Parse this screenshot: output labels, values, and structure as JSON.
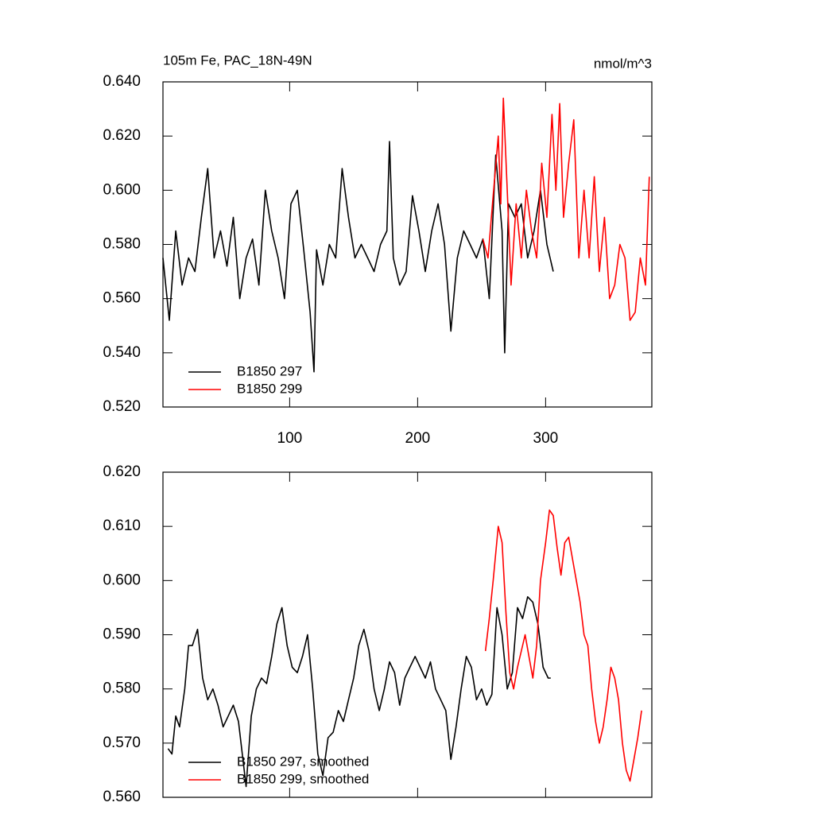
{
  "chart_data": [
    {
      "type": "line",
      "title": "105m Fe, PAC_18N-49N",
      "units": "nmol/m^3",
      "xlim": [
        1,
        383
      ],
      "xticks": [
        100,
        200,
        300
      ],
      "show_xtick_labels": true,
      "ylim": [
        0.52,
        0.64
      ],
      "yticks": [
        {
          "value": 0.52,
          "label": "0.520"
        },
        {
          "value": 0.54,
          "label": "0.540"
        },
        {
          "value": 0.56,
          "label": "0.560"
        },
        {
          "value": 0.58,
          "label": "0.580"
        },
        {
          "value": 0.6,
          "label": "0.600"
        },
        {
          "value": 0.62,
          "label": "0.620"
        },
        {
          "value": 0.64,
          "label": "0.640"
        }
      ],
      "legend": "lower left",
      "series": [
        {
          "name": "B1850 297",
          "color": "#000000",
          "x": [
            1,
            6,
            11,
            16,
            21,
            26,
            31,
            36,
            41,
            46,
            51,
            56,
            61,
            66,
            71,
            76,
            81,
            86,
            91,
            96,
            101,
            106,
            111,
            116,
            119,
            121,
            126,
            131,
            136,
            141,
            146,
            151,
            156,
            161,
            166,
            171,
            176,
            178,
            181,
            186,
            191,
            196,
            201,
            206,
            211,
            216,
            221,
            226,
            231,
            236,
            241,
            246,
            251,
            256,
            261,
            266,
            268,
            271,
            276,
            281,
            286,
            291,
            296,
            301,
            306
          ],
          "values": [
            0.575,
            0.552,
            0.585,
            0.565,
            0.575,
            0.57,
            0.59,
            0.608,
            0.575,
            0.585,
            0.572,
            0.59,
            0.56,
            0.575,
            0.582,
            0.565,
            0.6,
            0.585,
            0.575,
            0.56,
            0.595,
            0.6,
            0.578,
            0.555,
            0.533,
            0.578,
            0.565,
            0.58,
            0.575,
            0.608,
            0.59,
            0.575,
            0.58,
            0.575,
            0.57,
            0.58,
            0.585,
            0.618,
            0.575,
            0.565,
            0.57,
            0.598,
            0.585,
            0.57,
            0.585,
            0.595,
            0.58,
            0.548,
            0.575,
            0.585,
            0.58,
            0.575,
            0.582,
            0.56,
            0.613,
            0.585,
            0.54,
            0.595,
            0.59,
            0.595,
            0.575,
            0.585,
            0.6,
            0.58,
            0.57
          ]
        },
        {
          "name": "B1850 299",
          "color": "#ff0000",
          "x": [
            251,
            255,
            259,
            263,
            265,
            267,
            270,
            273,
            277,
            281,
            285,
            289,
            293,
            297,
            301,
            305,
            308,
            311,
            314,
            318,
            322,
            326,
            330,
            334,
            338,
            342,
            346,
            350,
            354,
            358,
            362,
            366,
            370,
            374,
            378,
            381
          ],
          "values": [
            0.582,
            0.575,
            0.598,
            0.62,
            0.595,
            0.634,
            0.6,
            0.565,
            0.595,
            0.575,
            0.6,
            0.585,
            0.575,
            0.61,
            0.59,
            0.628,
            0.6,
            0.632,
            0.59,
            0.61,
            0.626,
            0.575,
            0.6,
            0.575,
            0.605,
            0.57,
            0.59,
            0.56,
            0.565,
            0.58,
            0.575,
            0.552,
            0.555,
            0.575,
            0.565,
            0.605
          ]
        }
      ]
    },
    {
      "type": "line",
      "xlim": [
        1,
        383
      ],
      "xticks": [
        100,
        200,
        300
      ],
      "show_xtick_labels": false,
      "ylim": [
        0.56,
        0.62
      ],
      "yticks": [
        {
          "value": 0.56,
          "label": "0.560"
        },
        {
          "value": 0.57,
          "label": "0.570"
        },
        {
          "value": 0.58,
          "label": "0.580"
        },
        {
          "value": 0.59,
          "label": "0.590"
        },
        {
          "value": 0.6,
          "label": "0.600"
        },
        {
          "value": 0.61,
          "label": "0.610"
        },
        {
          "value": 0.62,
          "label": "0.620"
        }
      ],
      "legend": "lower left",
      "series": [
        {
          "name": "B1850 297, smoothed",
          "color": "#000000",
          "x": [
            5,
            8,
            11,
            14,
            18,
            21,
            24,
            28,
            32,
            36,
            40,
            44,
            48,
            52,
            56,
            60,
            63,
            66,
            70,
            74,
            78,
            82,
            86,
            90,
            94,
            98,
            102,
            106,
            110,
            114,
            118,
            122,
            126,
            130,
            134,
            138,
            142,
            146,
            150,
            154,
            158,
            162,
            166,
            170,
            174,
            178,
            182,
            186,
            190,
            194,
            198,
            202,
            206,
            210,
            214,
            218,
            222,
            226,
            230,
            234,
            238,
            242,
            246,
            250,
            254,
            258,
            262,
            266,
            270,
            274,
            278,
            282,
            286,
            290,
            294,
            298,
            302,
            304
          ],
          "values": [
            0.569,
            0.568,
            0.575,
            0.573,
            0.58,
            0.588,
            0.588,
            0.591,
            0.582,
            0.578,
            0.58,
            0.577,
            0.573,
            0.575,
            0.577,
            0.574,
            0.568,
            0.562,
            0.575,
            0.58,
            0.582,
            0.581,
            0.586,
            0.592,
            0.595,
            0.588,
            0.584,
            0.583,
            0.586,
            0.59,
            0.58,
            0.568,
            0.564,
            0.571,
            0.572,
            0.576,
            0.574,
            0.578,
            0.582,
            0.588,
            0.591,
            0.587,
            0.58,
            0.576,
            0.58,
            0.585,
            0.583,
            0.577,
            0.582,
            0.584,
            0.586,
            0.584,
            0.582,
            0.585,
            0.58,
            0.578,
            0.576,
            0.567,
            0.573,
            0.58,
            0.586,
            0.584,
            0.578,
            0.58,
            0.577,
            0.579,
            0.595,
            0.59,
            0.58,
            0.583,
            0.595,
            0.593,
            0.597,
            0.596,
            0.592,
            0.584,
            0.582,
            0.582
          ]
        },
        {
          "name": "B1850 299, smoothed",
          "color": "#ff0000",
          "x": [
            253,
            256,
            259,
            263,
            266,
            269,
            272,
            275,
            278,
            281,
            284,
            287,
            290,
            293,
            296,
            300,
            303,
            306,
            309,
            312,
            315,
            318,
            321,
            324,
            327,
            330,
            333,
            336,
            339,
            342,
            345,
            348,
            351,
            354,
            357,
            360,
            363,
            366,
            369,
            372,
            375
          ],
          "values": [
            0.587,
            0.593,
            0.6,
            0.61,
            0.607,
            0.594,
            0.583,
            0.58,
            0.584,
            0.587,
            0.59,
            0.586,
            0.582,
            0.588,
            0.6,
            0.607,
            0.613,
            0.612,
            0.606,
            0.601,
            0.607,
            0.608,
            0.604,
            0.6,
            0.596,
            0.59,
            0.588,
            0.58,
            0.574,
            0.57,
            0.573,
            0.578,
            0.584,
            0.582,
            0.578,
            0.57,
            0.565,
            0.563,
            0.567,
            0.571,
            0.576
          ]
        }
      ]
    }
  ]
}
